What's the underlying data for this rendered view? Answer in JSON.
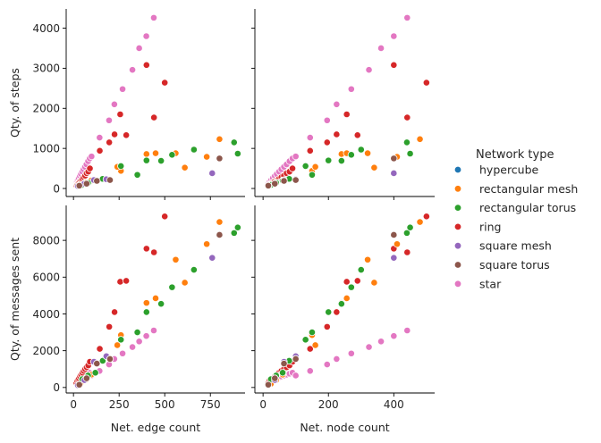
{
  "chart_data": {
    "type": "scatter",
    "legend": {
      "title": "Network type",
      "placement": "right",
      "entries": [
        {
          "name": "hypercube",
          "color": "#1f77b4"
        },
        {
          "name": "rectangular mesh",
          "color": "#ff7f0e"
        },
        {
          "name": "rectangular torus",
          "color": "#2ca02c"
        },
        {
          "name": "ring",
          "color": "#d62728"
        },
        {
          "name": "square mesh",
          "color": "#9467bd"
        },
        {
          "name": "square torus",
          "color": "#8c564b"
        },
        {
          "name": "star",
          "color": "#e377c2"
        }
      ]
    },
    "grid": false,
    "columns": [
      {
        "xlabel": "Net. edge count",
        "xlim": [
          -40,
          940
        ],
        "xticks": [
          0,
          250,
          500,
          750
        ]
      },
      {
        "xlabel": "Net. node count",
        "xlim": [
          -25,
          525
        ],
        "xticks": [
          0,
          200,
          400
        ]
      }
    ],
    "rows": [
      {
        "ylabel": "Qty. of steps",
        "ylim": [
          -200,
          4480
        ],
        "yticks": [
          0,
          1000,
          2000,
          3000,
          4000
        ]
      },
      {
        "ylabel": "Qty. of messages sent",
        "ylim": [
          -300,
          9900
        ],
        "yticks": [
          0,
          2000,
          4000,
          6000,
          8000
        ]
      }
    ],
    "series": [
      {
        "name": "star",
        "color": "#e377c2",
        "points": [
          {
            "nodes": 16,
            "edges": 15,
            "steps": 120,
            "messages": 240
          },
          {
            "nodes": 20,
            "edges": 19,
            "steps": 160,
            "messages": 300
          },
          {
            "nodes": 25,
            "edges": 24,
            "steps": 210,
            "messages": 350
          },
          {
            "nodes": 30,
            "edges": 29,
            "steps": 260,
            "messages": 400
          },
          {
            "nodes": 36,
            "edges": 35,
            "steps": 310,
            "messages": 450
          },
          {
            "nodes": 42,
            "edges": 41,
            "steps": 360,
            "messages": 500
          },
          {
            "nodes": 49,
            "edges": 48,
            "steps": 420,
            "messages": 550
          },
          {
            "nodes": 56,
            "edges": 55,
            "steps": 480,
            "messages": 600
          },
          {
            "nodes": 64,
            "edges": 63,
            "steps": 540,
            "messages": 650
          },
          {
            "nodes": 72,
            "edges": 71,
            "steps": 600,
            "messages": 700
          },
          {
            "nodes": 81,
            "edges": 80,
            "steps": 680,
            "messages": 750
          },
          {
            "nodes": 90,
            "edges": 89,
            "steps": 750,
            "messages": 800
          },
          {
            "nodes": 100,
            "edges": 99,
            "steps": 800,
            "messages": 650
          },
          {
            "nodes": 144,
            "edges": 143,
            "steps": 1270,
            "messages": 900
          },
          {
            "nodes": 196,
            "edges": 195,
            "steps": 1700,
            "messages": 1250
          },
          {
            "nodes": 225,
            "edges": 224,
            "steps": 2100,
            "messages": 1550
          },
          {
            "nodes": 270,
            "edges": 269,
            "steps": 2480,
            "messages": 1850
          },
          {
            "nodes": 324,
            "edges": 323,
            "steps": 2960,
            "messages": 2200
          },
          {
            "nodes": 361,
            "edges": 360,
            "steps": 3500,
            "messages": 2500
          },
          {
            "nodes": 400,
            "edges": 399,
            "steps": 3800,
            "messages": 2800
          },
          {
            "nodes": 441,
            "edges": 440,
            "steps": 4260,
            "messages": 3100
          }
        ]
      },
      {
        "name": "ring",
        "color": "#d62728",
        "points": [
          {
            "nodes": 16,
            "edges": 16,
            "steps": 80,
            "messages": 250
          },
          {
            "nodes": 20,
            "edges": 20,
            "steps": 100,
            "messages": 380
          },
          {
            "nodes": 25,
            "edges": 25,
            "steps": 130,
            "messages": 450
          },
          {
            "nodes": 30,
            "edges": 30,
            "steps": 150,
            "messages": 500
          },
          {
            "nodes": 36,
            "edges": 36,
            "steps": 180,
            "messages": 600
          },
          {
            "nodes": 42,
            "edges": 42,
            "steps": 200,
            "messages": 700
          },
          {
            "nodes": 49,
            "edges": 49,
            "steps": 240,
            "messages": 800
          },
          {
            "nodes": 56,
            "edges": 56,
            "steps": 280,
            "messages": 900
          },
          {
            "nodes": 64,
            "edges": 64,
            "steps": 320,
            "messages": 1000
          },
          {
            "nodes": 72,
            "edges": 72,
            "steps": 380,
            "messages": 1100
          },
          {
            "nodes": 81,
            "edges": 81,
            "steps": 420,
            "messages": 1200
          },
          {
            "nodes": 90,
            "edges": 90,
            "steps": 500,
            "messages": 1400
          },
          {
            "nodes": 144,
            "edges": 144,
            "steps": 940,
            "messages": 2100
          },
          {
            "nodes": 196,
            "edges": 196,
            "steps": 1150,
            "messages": 3300
          },
          {
            "nodes": 225,
            "edges": 225,
            "steps": 1350,
            "messages": 4100
          },
          {
            "nodes": 256,
            "edges": 256,
            "steps": 1850,
            "messages": 5750
          },
          {
            "nodes": 289,
            "edges": 289,
            "steps": 1330,
            "messages": 5800
          },
          {
            "nodes": 400,
            "edges": 400,
            "steps": 3080,
            "messages": 7550
          },
          {
            "nodes": 441,
            "edges": 441,
            "steps": 1770,
            "messages": 7350
          },
          {
            "nodes": 500,
            "edges": 500,
            "steps": 2640,
            "messages": 9300
          }
        ]
      },
      {
        "name": "rectangular mesh",
        "color": "#ff7f0e",
        "points": [
          {
            "nodes": 24,
            "edges": 38,
            "steps": 100,
            "messages": 200
          },
          {
            "nodes": 40,
            "edges": 66,
            "steps": 150,
            "messages": 400
          },
          {
            "nodes": 60,
            "edges": 98,
            "steps": 200,
            "messages": 700
          },
          {
            "nodes": 150,
            "edges": 260,
            "steps": 440,
            "messages": 2850
          },
          {
            "nodes": 160,
            "edges": 240,
            "steps": 540,
            "messages": 2300
          },
          {
            "nodes": 240,
            "edges": 400,
            "steps": 860,
            "messages": 4600
          },
          {
            "nodes": 256,
            "edges": 450,
            "steps": 880,
            "messages": 4850
          },
          {
            "nodes": 320,
            "edges": 560,
            "steps": 880,
            "messages": 6950
          },
          {
            "nodes": 340,
            "edges": 610,
            "steps": 520,
            "messages": 5700
          },
          {
            "nodes": 410,
            "edges": 730,
            "steps": 790,
            "messages": 7800
          },
          {
            "nodes": 480,
            "edges": 800,
            "steps": 1230,
            "messages": 9000
          }
        ]
      },
      {
        "name": "rectangular torus",
        "color": "#2ca02c",
        "points": [
          {
            "nodes": 24,
            "edges": 48,
            "steps": 90,
            "messages": 450
          },
          {
            "nodes": 40,
            "edges": 80,
            "steps": 140,
            "messages": 650
          },
          {
            "nodes": 60,
            "edges": 120,
            "steps": 200,
            "messages": 800
          },
          {
            "nodes": 80,
            "edges": 160,
            "steps": 240,
            "messages": 1450
          },
          {
            "nodes": 130,
            "edges": 260,
            "steps": 560,
            "messages": 2600
          },
          {
            "nodes": 150,
            "edges": 350,
            "steps": 340,
            "messages": 3000
          },
          {
            "nodes": 200,
            "edges": 400,
            "steps": 700,
            "messages": 4100
          },
          {
            "nodes": 240,
            "edges": 480,
            "steps": 690,
            "messages": 4550
          },
          {
            "nodes": 270,
            "edges": 540,
            "steps": 840,
            "messages": 5450
          },
          {
            "nodes": 300,
            "edges": 660,
            "steps": 970,
            "messages": 6400
          },
          {
            "nodes": 440,
            "edges": 880,
            "steps": 1150,
            "messages": 8400
          },
          {
            "nodes": 450,
            "edges": 900,
            "steps": 870,
            "messages": 8700
          }
        ]
      },
      {
        "name": "square mesh",
        "color": "#9467bd",
        "points": [
          {
            "nodes": 16,
            "edges": 24,
            "steps": 60,
            "messages": 120
          },
          {
            "nodes": 36,
            "edges": 60,
            "steps": 120,
            "messages": 400
          },
          {
            "nodes": 64,
            "edges": 112,
            "steps": 210,
            "messages": 1400
          },
          {
            "nodes": 100,
            "edges": 180,
            "steps": 230,
            "messages": 1700
          },
          {
            "nodes": 400,
            "edges": 760,
            "steps": 380,
            "messages": 7050
          }
        ]
      },
      {
        "name": "square torus",
        "color": "#8c564b",
        "points": [
          {
            "nodes": 16,
            "edges": 32,
            "steps": 70,
            "messages": 150
          },
          {
            "nodes": 36,
            "edges": 72,
            "steps": 120,
            "messages": 500
          },
          {
            "nodes": 64,
            "edges": 128,
            "steps": 190,
            "messages": 1300
          },
          {
            "nodes": 100,
            "edges": 200,
            "steps": 210,
            "messages": 1550
          },
          {
            "nodes": 400,
            "edges": 800,
            "steps": 750,
            "messages": 8300
          }
        ]
      }
    ]
  }
}
